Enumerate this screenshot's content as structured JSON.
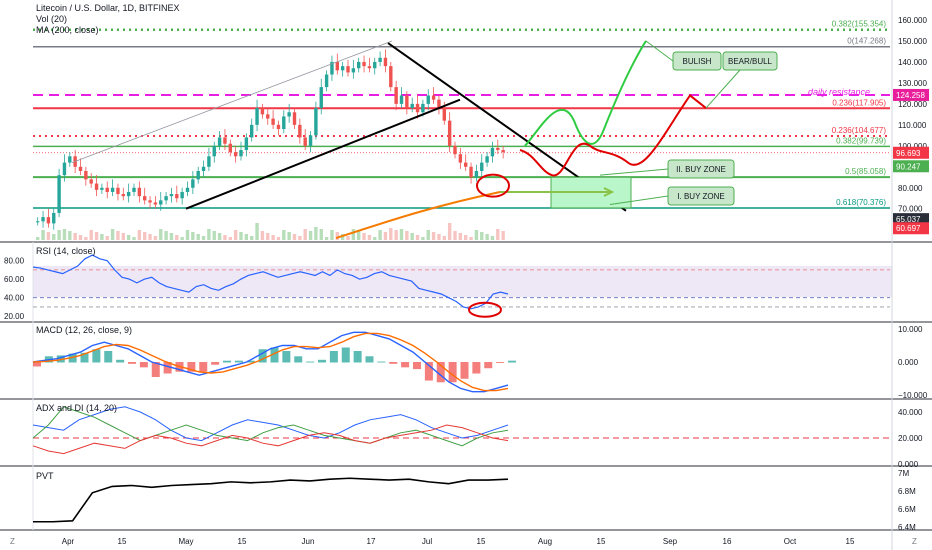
{
  "header": {
    "title": "Litecoin / U.S. Dollar, 1D, BITFINEX",
    "vol_label": "Vol (20)",
    "ma_label": "MA (200, close)"
  },
  "annotations": {
    "bulish": "BULISH",
    "bear_bull": "BEAR/BULL",
    "daily_resistance": "daily resistance",
    "buy_zone_2": "II. BUY ZONE",
    "buy_zone_1": "I. BUY ZONE"
  },
  "fib_labels": [
    {
      "text": "0.382(155.354)",
      "price": 155.354,
      "color": "#4caf50"
    },
    {
      "text": "0(147.268)",
      "price": 147.268,
      "color": "#787b86"
    },
    {
      "text": "0.236(117.905)",
      "price": 117.905,
      "color": "#f23645"
    },
    {
      "text": "0.236(104.677)",
      "price": 104.677,
      "color": "#f23645"
    },
    {
      "text": "0.382(99.739)",
      "price": 99.739,
      "color": "#4caf50"
    },
    {
      "text": "0.5(85.058)",
      "price": 85.058,
      "color": "#4caf50"
    },
    {
      "text": "0.618(70.376)",
      "price": 70.376,
      "color": "#089981"
    }
  ],
  "price_axis": {
    "ticks": [
      "160.000",
      "150.000",
      "140.000",
      "130.000",
      "120.000",
      "110.000",
      "100.000",
      "90.000",
      "80.000",
      "70.000",
      "60.000"
    ],
    "tick_values": [
      160,
      150,
      140,
      130,
      120,
      110,
      100,
      90,
      80,
      70,
      60
    ],
    "badges": [
      {
        "text": "124.258",
        "value": 124.258,
        "bg": "#e91e9a"
      },
      {
        "text": "96.693",
        "value": 96.693,
        "bg": "#f23645"
      },
      {
        "text": "90.247",
        "value": 90.247,
        "bg": "#4caf50"
      },
      {
        "text": "65.037",
        "value": 65.037,
        "bg": "#2a2e39"
      },
      {
        "text": "60.697",
        "value": 60.697,
        "bg": "#f23645"
      }
    ]
  },
  "rsi": {
    "label": "RSI (14, close)",
    "ticks": [
      "80.00",
      "60.00",
      "40.00",
      "20.00"
    ],
    "tick_values": [
      80,
      60,
      40,
      20
    ]
  },
  "macd": {
    "label": "MACD (12, 26, close, 9)",
    "ticks": [
      "10.000",
      "0.000",
      "−10.000"
    ],
    "tick_values": [
      10,
      0,
      -10
    ]
  },
  "adx": {
    "label": "ADX and DI (14, 20)",
    "ticks": [
      "40.000",
      "20.000",
      "0.000"
    ],
    "tick_values": [
      40,
      20,
      0
    ]
  },
  "pvt": {
    "label": "PVT",
    "ticks": [
      "7M",
      "6.8M",
      "6.6M",
      "6.4M"
    ],
    "tick_values": [
      7.0,
      6.8,
      6.6,
      6.4
    ]
  },
  "time_axis": {
    "labels": [
      "Apr",
      "15",
      "May",
      "15",
      "Jun",
      "17",
      "Jul",
      "15",
      "Aug",
      "15",
      "Sep",
      "16",
      "Oct",
      "15"
    ]
  },
  "footer": {
    "left_letter": "Z",
    "right_letter": "Z"
  },
  "colors": {
    "candle_up": "#26a69a",
    "candle_down": "#ef5350",
    "fib_0": "#787b86",
    "fib_green": "#4caf50",
    "fib_red": "#f23645",
    "resistance_magenta": "#e91ee3",
    "ma200": "#f57c00",
    "rsi_line": "#2962ff",
    "macd_line": "#2962ff",
    "signal_line": "#ff6d00",
    "pvt_line": "#000000"
  },
  "chart_data": {
    "type": "candlestick",
    "symbol": "Litecoin / U.S. Dollar",
    "interval": "1D",
    "exchange": "BITFINEX",
    "price_range": [
      55,
      165
    ],
    "horizontal_levels": [
      155.354,
      147.268,
      124.258,
      117.905,
      104.677,
      99.739,
      85.058,
      70.376
    ],
    "candles_close": [
      64,
      66,
      63,
      68,
      86,
      92,
      95,
      90,
      88,
      84,
      82,
      79,
      80,
      78,
      80,
      77,
      76,
      78,
      80,
      76,
      74,
      73,
      72,
      74,
      76,
      77,
      75,
      78,
      80,
      84,
      88,
      90,
      95,
      100,
      104,
      101,
      97,
      95,
      98,
      104,
      110,
      118,
      115,
      113,
      110,
      108,
      114,
      116,
      110,
      104,
      100,
      105,
      118,
      128,
      134,
      140,
      136,
      138,
      135,
      137,
      140,
      138,
      137,
      140,
      142,
      138,
      128,
      120,
      124,
      118,
      120,
      116,
      120,
      124,
      122,
      118,
      112,
      100,
      96,
      92,
      90,
      85,
      88,
      92,
      95,
      99,
      98,
      97
    ],
    "rsi_values": [
      73,
      72,
      70,
      68,
      66,
      70,
      74,
      82,
      86,
      82,
      80,
      70,
      62,
      60,
      56,
      60,
      62,
      56,
      52,
      50,
      48,
      46,
      52,
      54,
      50,
      48,
      52,
      55,
      60,
      64,
      66,
      68,
      65,
      62,
      64,
      66,
      68,
      66,
      64,
      68,
      64,
      70,
      66,
      64,
      60,
      62,
      66,
      68,
      64,
      62,
      60,
      58,
      50,
      48,
      46,
      44,
      40,
      36,
      30,
      28,
      30,
      34,
      44,
      46,
      44
    ],
    "macd_line": [
      0,
      0.5,
      1,
      2,
      3,
      5,
      6,
      5,
      4,
      2,
      0,
      -1,
      -2,
      -3,
      -4,
      -3,
      -2,
      -1,
      0,
      2,
      4,
      5,
      5,
      4,
      4,
      6,
      8,
      9,
      9,
      8,
      7,
      5,
      3,
      0,
      -3,
      -6,
      -8,
      -9,
      -9,
      -8,
      -7
    ],
    "pvt_values": [
      6.46,
      6.46,
      6.47,
      6.78,
      6.85,
      6.86,
      6.84,
      6.86,
      6.87,
      6.88,
      6.9,
      6.89,
      6.9,
      6.92,
      6.91,
      6.93,
      6.94,
      6.93,
      6.92,
      6.93,
      6.9,
      6.88,
      6.92,
      6.92,
      6.93
    ]
  }
}
